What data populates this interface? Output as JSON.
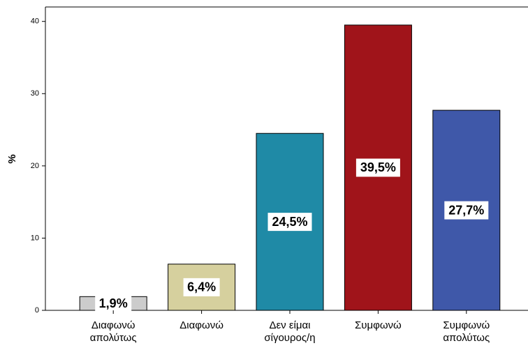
{
  "chart_data": {
    "type": "bar",
    "y_label": "%",
    "categories": [
      [
        "Διαφωνώ",
        "απολύτως"
      ],
      [
        "Διαφωνώ"
      ],
      [
        "Δεν είμαι",
        "σίγουρος/η"
      ],
      [
        "Συμφωνώ"
      ],
      [
        "Συμφωνώ",
        "απολύτως"
      ]
    ],
    "values": [
      1.9,
      6.4,
      24.5,
      39.5,
      27.7
    ],
    "value_labels": [
      "1,9%",
      "6,4%",
      "24,5%",
      "39,5%",
      "27,7%"
    ],
    "colors": [
      "#cccccc",
      "#d6d09e",
      "#1f8aa6",
      "#a0141a",
      "#3f58a9"
    ],
    "ylim": [
      0,
      42
    ],
    "yticks": [
      0,
      10,
      20,
      30,
      40
    ]
  }
}
